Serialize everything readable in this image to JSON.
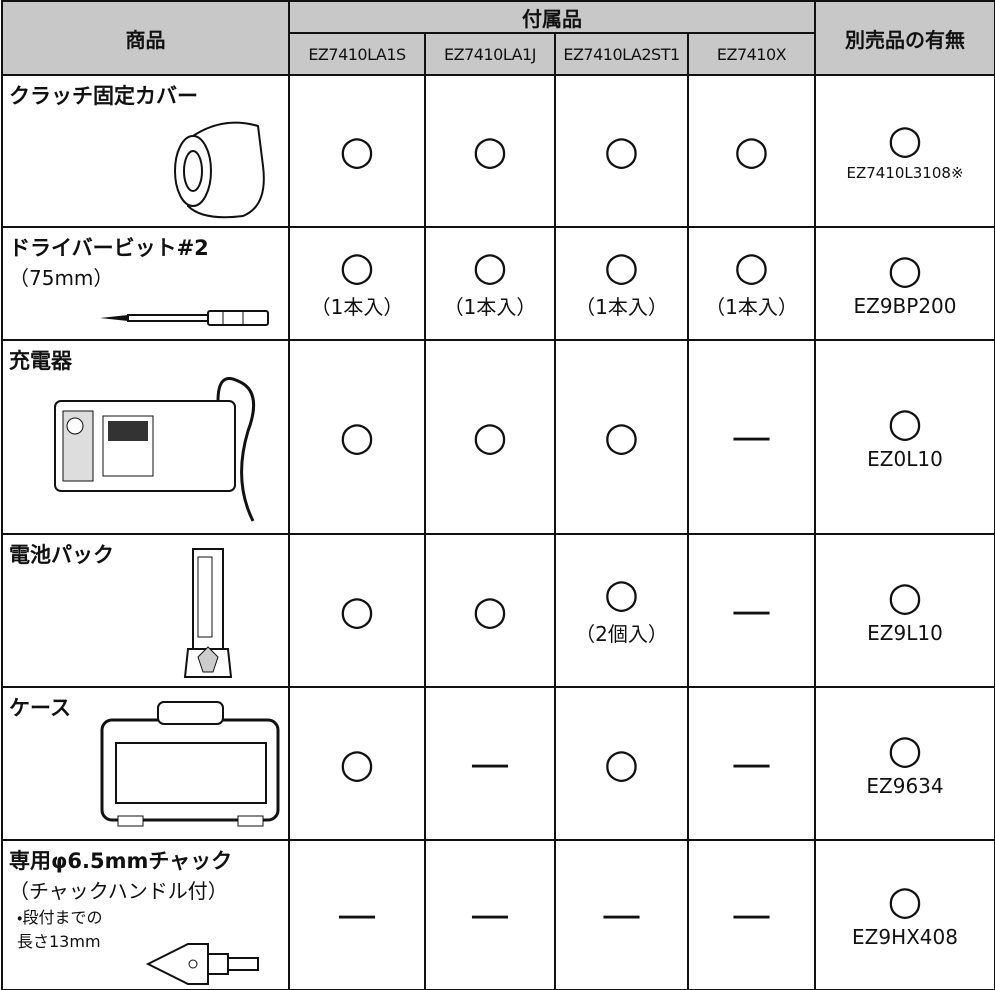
{
  "table": {
    "header": {
      "product": "商品",
      "accessories": "付属品",
      "models": [
        "EZ7410LA1S",
        "EZ7410LA1J",
        "EZ7410LA2ST1",
        "EZ7410X"
      ],
      "separate": "別売品の有無"
    },
    "rows": [
      {
        "name": "クラッチ固定カバー",
        "sub": [],
        "cells": [
          {
            "mark": "○"
          },
          {
            "mark": "○"
          },
          {
            "mark": "○"
          },
          {
            "mark": "○"
          }
        ],
        "separate": {
          "mark": "○",
          "part": "EZ7410L3108※"
        }
      },
      {
        "name": "ドライバービット#2",
        "sub": [
          "（75mm）"
        ],
        "cells": [
          {
            "mark": "○",
            "note": "（1本入）"
          },
          {
            "mark": "○",
            "note": "（1本入）"
          },
          {
            "mark": "○",
            "note": "（1本入）"
          },
          {
            "mark": "○",
            "note": "（1本入）"
          }
        ],
        "separate": {
          "mark": "○",
          "part": "EZ9BP200"
        }
      },
      {
        "name": "充電器",
        "sub": [],
        "cells": [
          {
            "mark": "○"
          },
          {
            "mark": "○"
          },
          {
            "mark": "○"
          },
          {
            "mark": "—"
          }
        ],
        "separate": {
          "mark": "○",
          "part": "EZ0L10"
        }
      },
      {
        "name": "電池パック",
        "sub": [],
        "cells": [
          {
            "mark": "○"
          },
          {
            "mark": "○"
          },
          {
            "mark": "○",
            "note": "（2個入）"
          },
          {
            "mark": "—"
          }
        ],
        "separate": {
          "mark": "○",
          "part": "EZ9L10"
        }
      },
      {
        "name": "ケース",
        "sub": [],
        "cells": [
          {
            "mark": "○"
          },
          {
            "mark": "—"
          },
          {
            "mark": "○"
          },
          {
            "mark": "—"
          }
        ],
        "separate": {
          "mark": "○",
          "part": "EZ9634"
        }
      },
      {
        "name": "専用φ6.5mmチャック",
        "sub": [
          "（チャックハンドル付）",
          "・段付までの",
          "長さ13mm"
        ],
        "cells": [
          {
            "mark": "—"
          },
          {
            "mark": "—"
          },
          {
            "mark": "—"
          },
          {
            "mark": "—"
          }
        ],
        "separate": {
          "mark": "○",
          "part": "EZ9HX408"
        }
      }
    ]
  }
}
